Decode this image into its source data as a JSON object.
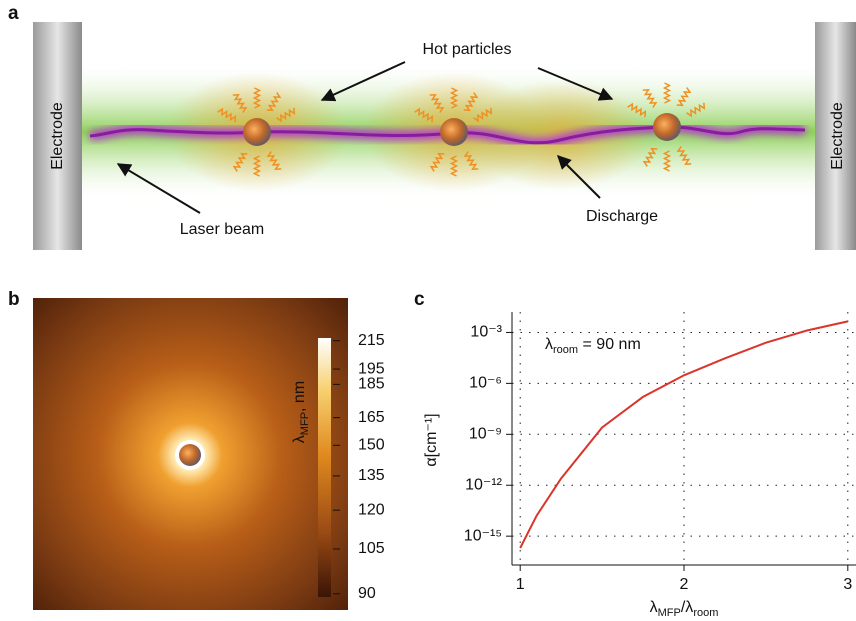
{
  "panel_a": {
    "label": "a",
    "electrode_left": "Electrode",
    "electrode_right": "Electrode",
    "hot_particles": "Hot particles",
    "laser_beam": "Laser beam",
    "discharge": "Discharge"
  },
  "panel_b": {
    "label": "b",
    "colorbar": {
      "label": [
        "λ",
        "MFP",
        ", nm"
      ],
      "scale": "log",
      "lim": [
        89,
        217
      ],
      "ticks": [
        215,
        195,
        185,
        165,
        150,
        135,
        120,
        105,
        90
      ]
    }
  },
  "chart_data": {
    "type": "line",
    "panel_label": "c",
    "annotation": [
      "λ",
      "room",
      " = 90 nm"
    ],
    "x_label": [
      "λ",
      "MFP",
      "/λ",
      "room"
    ],
    "y_label": "α[cm⁻¹]",
    "x": [
      1,
      1.1,
      1.25,
      1.5,
      1.75,
      2,
      2.25,
      2.5,
      2.75,
      3
    ],
    "values": [
      2e-16,
      1.6e-14,
      2.5e-12,
      2.5e-09,
      1.6e-07,
      3e-06,
      3e-05,
      0.00025,
      0.0013,
      0.0045
    ],
    "color": "#d9352b",
    "xlim": [
      0.95,
      3.05
    ],
    "xticks": [
      1,
      2,
      3
    ],
    "yscale": "log",
    "ylim": [
      2e-17,
      0.016
    ],
    "yticks": [
      {
        "value": 1e-15,
        "label": "10⁻¹⁵"
      },
      {
        "value": 1e-12,
        "label": "10⁻¹²"
      },
      {
        "value": 1e-09,
        "label": "10⁻⁹"
      },
      {
        "value": 1e-06,
        "label": "10⁻⁶"
      },
      {
        "value": 0.001,
        "label": "10⁻³"
      }
    ],
    "grid": true
  }
}
